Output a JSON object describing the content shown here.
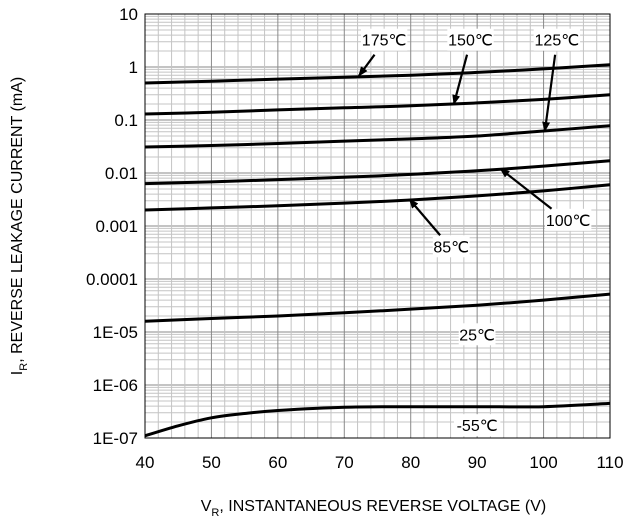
{
  "chart_data": {
    "type": "line",
    "xlabel_main": "V",
    "xlabel_sub": "R",
    "xlabel_rest": ", INSTANTANEOUS REVERSE VOLTAGE (V)",
    "ylabel_main": "I",
    "ylabel_sub": "R",
    "ylabel_rest": ", REVERSE LEAKAGE CURRENT (mA)",
    "xlim": [
      40,
      110
    ],
    "ylim": [
      1e-07,
      10
    ],
    "yscale": "log",
    "grid": true,
    "x_ticks": [
      "40",
      "50",
      "60",
      "70",
      "80",
      "90",
      "100",
      "110"
    ],
    "y_ticks": [
      "1E-07",
      "1E-06",
      "1E-05",
      "0.0001",
      "0.001",
      "0.01",
      "0.1",
      "1",
      "10"
    ],
    "series": [
      {
        "name": "175℃",
        "x": [
          40,
          50,
          60,
          70,
          80,
          90,
          100,
          110
        ],
        "y": [
          0.5,
          0.54,
          0.59,
          0.64,
          0.7,
          0.79,
          0.92,
          1.1
        ]
      },
      {
        "name": "150℃",
        "x": [
          40,
          50,
          60,
          70,
          80,
          90,
          100,
          110
        ],
        "y": [
          0.13,
          0.14,
          0.155,
          0.17,
          0.185,
          0.21,
          0.245,
          0.3
        ]
      },
      {
        "name": "125℃",
        "x": [
          40,
          50,
          60,
          70,
          80,
          90,
          100,
          110
        ],
        "y": [
          0.031,
          0.033,
          0.036,
          0.04,
          0.044,
          0.05,
          0.062,
          0.078
        ]
      },
      {
        "name": "100℃",
        "x": [
          40,
          50,
          60,
          70,
          80,
          90,
          100,
          110
        ],
        "y": [
          0.0063,
          0.0068,
          0.0075,
          0.0083,
          0.0094,
          0.011,
          0.0135,
          0.017
        ]
      },
      {
        "name": "85℃",
        "x": [
          40,
          50,
          60,
          70,
          80,
          90,
          100,
          110
        ],
        "y": [
          0.002,
          0.0022,
          0.0024,
          0.0027,
          0.0031,
          0.0037,
          0.0046,
          0.006
        ]
      },
      {
        "name": "25℃",
        "x": [
          40,
          50,
          60,
          70,
          80,
          90,
          100,
          110
        ],
        "y": [
          1.6e-05,
          1.8e-05,
          2e-05,
          2.3e-05,
          2.7e-05,
          3.2e-05,
          4e-05,
          5.2e-05
        ]
      },
      {
        "name": "-55℃",
        "x": [
          40,
          45,
          50,
          55,
          60,
          70,
          80,
          90,
          100,
          110
        ],
        "y": [
          1.1e-07,
          1.7e-07,
          2.4e-07,
          2.9e-07,
          3.3e-07,
          3.8e-07,
          3.9e-07,
          3.9e-07,
          3.9e-07,
          4.5e-07
        ]
      }
    ],
    "annotations": [
      {
        "text": "175℃",
        "x": 76,
        "y": 3.0,
        "arrow_to": [
          72.2,
          0.68
        ],
        "anchor": "middle"
      },
      {
        "text": "150℃",
        "x": 89,
        "y": 3.0,
        "arrow_to": [
          86.5,
          0.2
        ],
        "anchor": "middle"
      },
      {
        "text": "125℃",
        "x": 102,
        "y": 3.0,
        "arrow_to": [
          100.2,
          0.062
        ],
        "anchor": "middle"
      },
      {
        "text": "100℃",
        "x": 103.7,
        "y": 0.0012,
        "arrow_to": [
          93.5,
          0.012
        ],
        "anchor": "middle"
      },
      {
        "text": "85℃",
        "x": 86.1,
        "y": 0.00038,
        "arrow_to": [
          79.8,
          0.0032
        ],
        "anchor": "middle"
      },
      {
        "text": "25℃",
        "x": 90,
        "y": 8.3e-06,
        "arrow_to": null,
        "anchor": "middle"
      },
      {
        "text": "-55℃",
        "x": 90,
        "y": 1.6e-07,
        "arrow_to": null,
        "anchor": "middle"
      }
    ]
  }
}
